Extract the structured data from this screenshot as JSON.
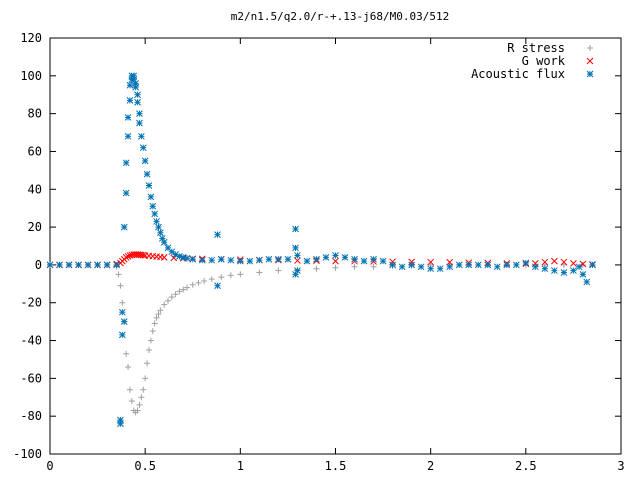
{
  "chart_data": {
    "type": "scatter",
    "title": "m2/n1.5/q2.0/r-+.13-j68/M0.03/512",
    "xlabel": "",
    "ylabel": "",
    "xlim": [
      0,
      3
    ],
    "ylim": [
      -100,
      120
    ],
    "xticks": [
      "0",
      "0.5",
      "1",
      "1.5",
      "2",
      "2.5",
      "3"
    ],
    "yticks": [
      "-100",
      "-80",
      "-60",
      "-40",
      "-20",
      "0",
      "20",
      "40",
      "60",
      "80",
      "100",
      "120"
    ],
    "grid": false,
    "legend_position": "top-right",
    "series": [
      {
        "name": "R stress",
        "marker": "plus",
        "color": "#a0a0a0",
        "x": [
          0.0,
          0.05,
          0.1,
          0.15,
          0.2,
          0.25,
          0.3,
          0.35,
          0.36,
          0.37,
          0.38,
          0.39,
          0.4,
          0.41,
          0.42,
          0.43,
          0.44,
          0.45,
          0.46,
          0.47,
          0.48,
          0.49,
          0.5,
          0.51,
          0.52,
          0.53,
          0.54,
          0.55,
          0.56,
          0.57,
          0.58,
          0.6,
          0.62,
          0.64,
          0.66,
          0.68,
          0.7,
          0.72,
          0.75,
          0.78,
          0.81,
          0.85,
          0.9,
          0.95,
          1.0,
          1.1,
          1.2,
          1.3,
          1.4,
          1.5,
          1.6,
          1.7,
          1.8,
          1.9,
          2.0,
          2.1,
          2.2,
          2.3,
          2.4,
          2.5,
          2.6,
          2.7,
          2.8,
          2.85
        ],
        "y": [
          0,
          0,
          0,
          0,
          0,
          0,
          0,
          -1,
          -5,
          -11,
          -20,
          -30,
          -47,
          -54,
          -66,
          -72,
          -77,
          -78,
          -77,
          -74,
          -70,
          -66,
          -60,
          -52,
          -45,
          -40,
          -35,
          -31,
          -28,
          -26,
          -24,
          -21,
          -19,
          -17,
          -15.5,
          -14,
          -13,
          -12,
          -10.5,
          -9.5,
          -8.5,
          -7.5,
          -6.5,
          -5.5,
          -5,
          -4,
          -3,
          -2.5,
          -2,
          -1.5,
          -1,
          -1,
          -0.5,
          -0.5,
          0,
          0,
          0,
          0,
          0,
          0,
          0,
          0,
          0,
          0
        ]
      },
      {
        "name": "G work",
        "marker": "cross",
        "color": "#ff0000",
        "x": [
          0.0,
          0.05,
          0.1,
          0.15,
          0.2,
          0.25,
          0.3,
          0.35,
          0.37,
          0.38,
          0.39,
          0.4,
          0.41,
          0.42,
          0.43,
          0.44,
          0.45,
          0.46,
          0.47,
          0.48,
          0.49,
          0.5,
          0.52,
          0.54,
          0.56,
          0.58,
          0.6,
          0.65,
          0.7,
          0.75,
          0.8,
          0.9,
          1.0,
          1.1,
          1.2,
          1.3,
          1.4,
          1.5,
          1.6,
          1.7,
          1.8,
          1.9,
          2.0,
          2.1,
          2.2,
          2.3,
          2.4,
          2.5,
          2.55,
          2.6,
          2.65,
          2.7,
          2.75,
          2.8,
          2.85
        ],
        "y": [
          0,
          0,
          0,
          0,
          0,
          0,
          0,
          0.5,
          1,
          2,
          3,
          4,
          4.5,
          5,
          5.3,
          5.5,
          5.5,
          5.5,
          5.4,
          5.3,
          5.2,
          5,
          4.8,
          4.6,
          4.4,
          4.2,
          4,
          3.7,
          3.5,
          3.3,
          3.2,
          3,
          2.8,
          2.6,
          2.5,
          2.3,
          2.2,
          2,
          1.9,
          1.8,
          1.7,
          1.6,
          1.5,
          1.4,
          1.2,
          1,
          0.8,
          0.6,
          0.8,
          1.5,
          2,
          1.5,
          0.8,
          0.5,
          0.3
        ]
      },
      {
        "name": "Acoustic flux",
        "marker": "star",
        "color": "#0072b2",
        "x": [
          0.0,
          0.05,
          0.1,
          0.15,
          0.2,
          0.25,
          0.3,
          0.35,
          0.37,
          0.37,
          0.38,
          0.38,
          0.39,
          0.39,
          0.4,
          0.4,
          0.41,
          0.41,
          0.42,
          0.42,
          0.43,
          0.43,
          0.44,
          0.44,
          0.45,
          0.45,
          0.46,
          0.46,
          0.47,
          0.47,
          0.48,
          0.49,
          0.5,
          0.51,
          0.52,
          0.53,
          0.54,
          0.55,
          0.56,
          0.57,
          0.58,
          0.59,
          0.6,
          0.62,
          0.64,
          0.66,
          0.68,
          0.7,
          0.72,
          0.75,
          0.8,
          0.85,
          0.88,
          0.88,
          0.9,
          0.95,
          1.0,
          1.05,
          1.1,
          1.15,
          1.2,
          1.25,
          1.29,
          1.29,
          1.29,
          1.3,
          1.3,
          1.35,
          1.4,
          1.45,
          1.5,
          1.55,
          1.6,
          1.65,
          1.7,
          1.75,
          1.8,
          1.85,
          1.9,
          1.95,
          2.0,
          2.05,
          2.1,
          2.15,
          2.2,
          2.25,
          2.3,
          2.35,
          2.4,
          2.45,
          2.5,
          2.55,
          2.6,
          2.65,
          2.7,
          2.75,
          2.78,
          2.8,
          2.82,
          2.85
        ],
        "y": [
          0,
          0,
          0,
          0,
          0,
          0,
          0,
          0,
          -84,
          -82,
          -37,
          -25,
          -30,
          20,
          38,
          54,
          68,
          78,
          87,
          95,
          98,
          100,
          100,
          98,
          96,
          94,
          90,
          86,
          80,
          75,
          68,
          62,
          55,
          48,
          42,
          36,
          31,
          27,
          23,
          20,
          17,
          14,
          12,
          9,
          7,
          5.5,
          4.5,
          4,
          3.5,
          3,
          2.5,
          2.5,
          16,
          -11,
          3,
          2.5,
          2,
          2,
          2.5,
          3,
          3,
          3,
          19,
          9,
          -5,
          5,
          -3,
          2,
          3,
          4,
          5,
          4,
          3,
          2,
          3,
          2,
          0,
          -1,
          0,
          -1,
          -2,
          -2,
          -1,
          0,
          0,
          0,
          0,
          -1,
          0,
          0,
          1,
          -1,
          -2,
          -3,
          -4,
          -3,
          -1,
          -5,
          -9,
          0
        ]
      }
    ]
  }
}
